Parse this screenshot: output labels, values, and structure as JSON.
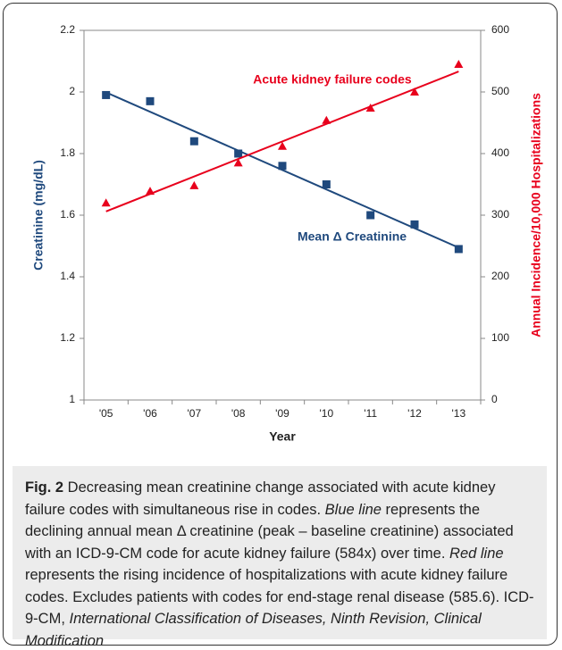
{
  "chart_data": {
    "type": "scatter",
    "categories": [
      "'05",
      "'06",
      "'07",
      "'08",
      "'09",
      "'10",
      "'11",
      "'12",
      "'13"
    ],
    "x_label": "Year",
    "y_label": "Creatinine (mg/dL)",
    "y2_label": "Annual Incidence/10,000 Hospitalizations",
    "ylim": [
      1,
      2.2
    ],
    "yticks": [
      1,
      1.2,
      1.4,
      1.6,
      1.8,
      2,
      2.2
    ],
    "y2lim": [
      0,
      600
    ],
    "y2ticks": [
      0,
      100,
      200,
      300,
      400,
      500,
      600
    ],
    "trendline": true,
    "series": [
      {
        "name": "Mean Δ Creatinine",
        "color": "#1f497d",
        "marker": "square",
        "values": [
          1.99,
          1.97,
          1.84,
          1.8,
          1.76,
          1.7,
          1.6,
          1.57,
          1.49
        ]
      },
      {
        "name": "Acute kidney failure codes",
        "color": "#e8001c",
        "marker": "triangle",
        "axis": "y2",
        "values": [
          320,
          339,
          348,
          385,
          412,
          454,
          474,
          500,
          545
        ]
      }
    ]
  },
  "caption": {
    "label": "Fig. 2",
    "parts": [
      " Decreasing mean creatinine change associated with acute kidney failure codes with simultaneous rise in codes. ",
      "Blue line",
      " represents the declining annual mean Δ creatinine (peak – baseline creatinine) associated with an ICD-9-CM code for acute kidney failure (584x) over time. ",
      "Red line",
      " represents the rising incidence of hospitalizations with acute kidney failure codes. Excludes patients with codes for end-stage renal disease (585.6). ICD-9-CM, ",
      "International Classification of Diseases, Ninth Revision, Clinical Modification"
    ]
  }
}
